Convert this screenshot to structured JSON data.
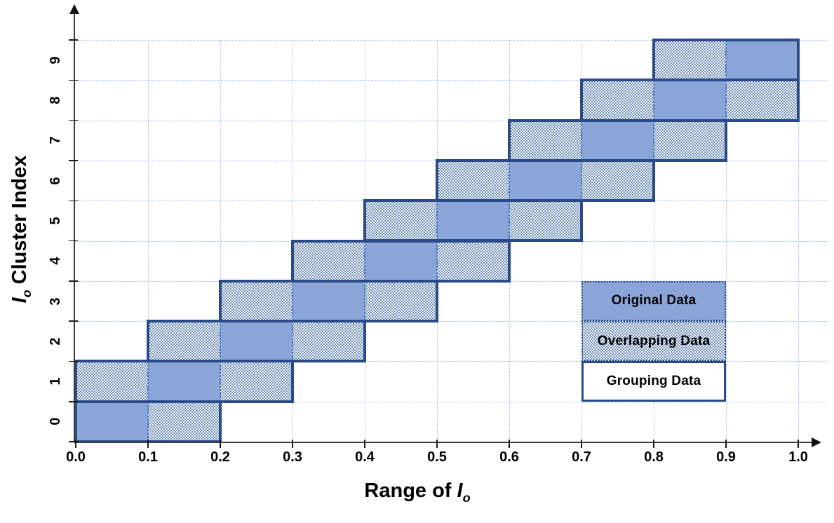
{
  "chart_data": {
    "type": "bar",
    "subtype": "horizontal-range-blocks",
    "title": "",
    "xlabel": "Range of Io",
    "xlabel_prefix": "Range of ",
    "x_symbol": "I",
    "x_symbol_sub": "o",
    "ylabel": "Io Cluster Index",
    "y_symbol": "I",
    "y_symbol_sub": "o",
    "ylabel_suffix": " Cluster Index",
    "xlim": [
      0.0,
      1.0
    ],
    "ylim": [
      0,
      10
    ],
    "grid": true,
    "x_ticks": [
      "0.0",
      "0.1",
      "0.2",
      "0.3",
      "0.4",
      "0.5",
      "0.6",
      "0.7",
      "0.8",
      "0.9",
      "1.0"
    ],
    "x_tick_values": [
      0.0,
      0.1,
      0.2,
      0.3,
      0.4,
      0.5,
      0.6,
      0.7,
      0.8,
      0.9,
      1.0
    ],
    "y_ticks": [
      "0",
      "1",
      "2",
      "3",
      "4",
      "5",
      "6",
      "7",
      "8",
      "9"
    ],
    "clusters": [
      {
        "index": 0,
        "original": [
          0.0,
          0.1
        ],
        "overlapping": [
          [
            0.1,
            0.2
          ]
        ],
        "grouping": [
          0.0,
          0.2
        ]
      },
      {
        "index": 1,
        "original": [
          0.1,
          0.2
        ],
        "overlapping": [
          [
            0.0,
            0.1
          ],
          [
            0.2,
            0.3
          ]
        ],
        "grouping": [
          0.0,
          0.3
        ]
      },
      {
        "index": 2,
        "original": [
          0.2,
          0.3
        ],
        "overlapping": [
          [
            0.1,
            0.2
          ],
          [
            0.3,
            0.4
          ]
        ],
        "grouping": [
          0.1,
          0.4
        ]
      },
      {
        "index": 3,
        "original": [
          0.3,
          0.4
        ],
        "overlapping": [
          [
            0.2,
            0.3
          ],
          [
            0.4,
            0.5
          ]
        ],
        "grouping": [
          0.2,
          0.5
        ]
      },
      {
        "index": 4,
        "original": [
          0.4,
          0.5
        ],
        "overlapping": [
          [
            0.3,
            0.4
          ],
          [
            0.5,
            0.6
          ]
        ],
        "grouping": [
          0.3,
          0.6
        ]
      },
      {
        "index": 5,
        "original": [
          0.5,
          0.6
        ],
        "overlapping": [
          [
            0.4,
            0.5
          ],
          [
            0.6,
            0.7
          ]
        ],
        "grouping": [
          0.4,
          0.7
        ]
      },
      {
        "index": 6,
        "original": [
          0.6,
          0.7
        ],
        "overlapping": [
          [
            0.5,
            0.6
          ],
          [
            0.7,
            0.8
          ]
        ],
        "grouping": [
          0.5,
          0.8
        ]
      },
      {
        "index": 7,
        "original": [
          0.7,
          0.8
        ],
        "overlapping": [
          [
            0.6,
            0.7
          ],
          [
            0.8,
            0.9
          ]
        ],
        "grouping": [
          0.6,
          0.9
        ]
      },
      {
        "index": 8,
        "original": [
          0.8,
          0.9
        ],
        "overlapping": [
          [
            0.7,
            0.8
          ],
          [
            0.9,
            1.0
          ]
        ],
        "grouping": [
          0.7,
          1.0
        ]
      },
      {
        "index": 9,
        "original": [
          0.9,
          1.0
        ],
        "overlapping": [
          [
            0.8,
            0.9
          ]
        ],
        "grouping": [
          0.8,
          1.0
        ]
      }
    ],
    "legend": {
      "position": "lower-right",
      "x_range": [
        0.7,
        0.9
      ],
      "rows": [
        3,
        2,
        1
      ],
      "items": [
        {
          "label": "Original Data",
          "style": "original"
        },
        {
          "label": "Overlapping Data",
          "style": "overlapping"
        },
        {
          "label": "Grouping Data",
          "style": "grouping"
        }
      ]
    },
    "colors": {
      "original_fill": "#8CA5D9",
      "box_border": "#2A4A8A",
      "overlap_dot": "#3A64A8",
      "grid_line": "#9EBAE8",
      "cell_dash": "#4472C4",
      "axis_line": "#3C3C3C",
      "text": "#000000"
    }
  }
}
